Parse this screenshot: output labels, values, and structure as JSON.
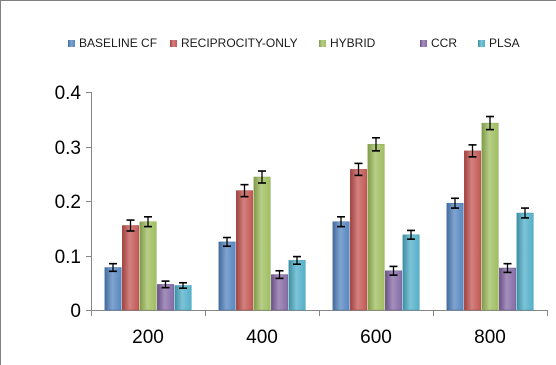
{
  "chart_data": {
    "type": "bar",
    "title": "",
    "xlabel": "",
    "ylabel": "",
    "categories": [
      "200",
      "400",
      "600",
      "800"
    ],
    "ylim": [
      0,
      0.4
    ],
    "yticks": [
      "0",
      "0.1",
      "0.2",
      "0.3",
      "0.4"
    ],
    "grid": false,
    "legend_position": "top",
    "error_bars": true,
    "series": [
      {
        "name": "BASELINE CF",
        "color": "#4f81bd",
        "values": [
          0.078,
          0.125,
          0.162,
          0.196
        ],
        "errors": [
          0.007,
          0.008,
          0.009,
          0.009
        ]
      },
      {
        "name": "RECIPROCITY-ONLY",
        "color": "#c0504d",
        "values": [
          0.155,
          0.219,
          0.258,
          0.292
        ],
        "errors": [
          0.01,
          0.011,
          0.011,
          0.011
        ]
      },
      {
        "name": "HYBRID",
        "color": "#9bbb59",
        "values": [
          0.162,
          0.244,
          0.304,
          0.343
        ],
        "errors": [
          0.009,
          0.011,
          0.012,
          0.012
        ]
      },
      {
        "name": "CCR",
        "color": "#8064a2",
        "values": [
          0.047,
          0.065,
          0.072,
          0.077
        ],
        "errors": [
          0.006,
          0.007,
          0.008,
          0.008
        ]
      },
      {
        "name": "PLSA",
        "color": "#4bacc6",
        "values": [
          0.045,
          0.091,
          0.138,
          0.178
        ],
        "errors": [
          0.005,
          0.007,
          0.008,
          0.009
        ]
      }
    ]
  }
}
